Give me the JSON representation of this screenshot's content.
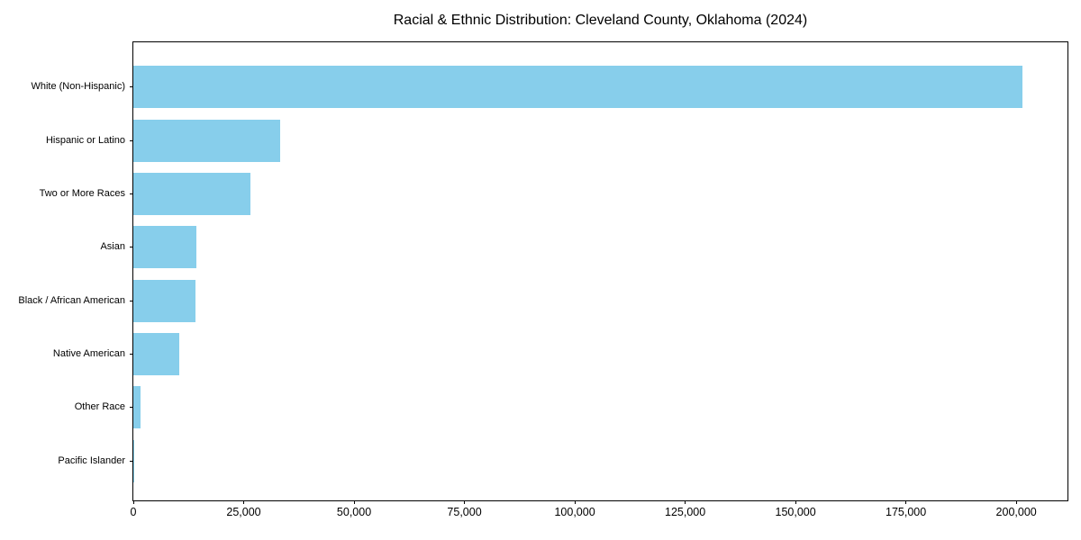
{
  "title": "Racial & Ethnic Distribution: Cleveland County, Oklahoma (2024)",
  "chart_data": {
    "type": "bar",
    "orientation": "horizontal",
    "title": "Racial & Ethnic Distribution: Cleveland County, Oklahoma (2024)",
    "xlabel": "",
    "ylabel": "",
    "categories": [
      "White (Non-Hispanic)",
      "Hispanic or Latino",
      "Two or More Races",
      "Asian",
      "Black / African American",
      "Native American",
      "Other Race",
      "Pacific Islander"
    ],
    "values": [
      201400,
      33300,
      26500,
      14200,
      14000,
      10400,
      1700,
      150
    ],
    "xlim": [
      0,
      211600
    ],
    "x_ticks": [
      {
        "value": 0,
        "label": "0"
      },
      {
        "value": 25000,
        "label": "25,000"
      },
      {
        "value": 50000,
        "label": "50,000"
      },
      {
        "value": 75000,
        "label": "75,000"
      },
      {
        "value": 100000,
        "label": "100,000"
      },
      {
        "value": 125000,
        "label": "125,000"
      },
      {
        "value": 150000,
        "label": "150,000"
      },
      {
        "value": 175000,
        "label": "175,000"
      },
      {
        "value": 200000,
        "label": "200,000"
      }
    ],
    "bar_color": "#87CEEB",
    "background_color": "#ffffff",
    "grid": false,
    "legend": null
  }
}
